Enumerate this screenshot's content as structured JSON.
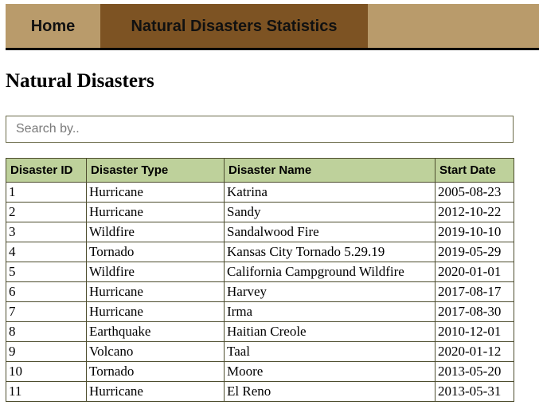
{
  "nav": {
    "items": [
      {
        "label": "Home"
      },
      {
        "label": "Natural Disasters Statistics"
      }
    ]
  },
  "page": {
    "title": "Natural Disasters"
  },
  "search": {
    "placeholder": "Search by.."
  },
  "colors": {
    "nav_bg": "#b99b6b",
    "nav_active_bg": "#7d5323",
    "table_header_bg": "#bed19b",
    "table_border": "#4d4d2e"
  },
  "table": {
    "headers": [
      "Disaster ID",
      "Disaster Type",
      "Disaster Name",
      "Start Date"
    ],
    "rows": [
      [
        "1",
        "Hurricane",
        "Katrina",
        "2005-08-23"
      ],
      [
        "2",
        "Hurricane",
        "Sandy",
        "2012-10-22"
      ],
      [
        "3",
        "Wildfire",
        "Sandalwood Fire",
        "2019-10-10"
      ],
      [
        "4",
        "Tornado",
        "Kansas City Tornado 5.29.19",
        "2019-05-29"
      ],
      [
        "5",
        "Wildfire",
        "California Campground Wildfire",
        "2020-01-01"
      ],
      [
        "6",
        "Hurricane",
        "Harvey",
        "2017-08-17"
      ],
      [
        "7",
        "Hurricane",
        "Irma",
        "2017-08-30"
      ],
      [
        "8",
        "Earthquake",
        "Haitian Creole",
        "2010-12-01"
      ],
      [
        "9",
        "Volcano",
        "Taal",
        "2020-01-12"
      ],
      [
        "10",
        "Tornado",
        "Moore",
        "2013-05-20"
      ],
      [
        "11",
        "Hurricane",
        "El Reno",
        "2013-05-31"
      ]
    ]
  }
}
